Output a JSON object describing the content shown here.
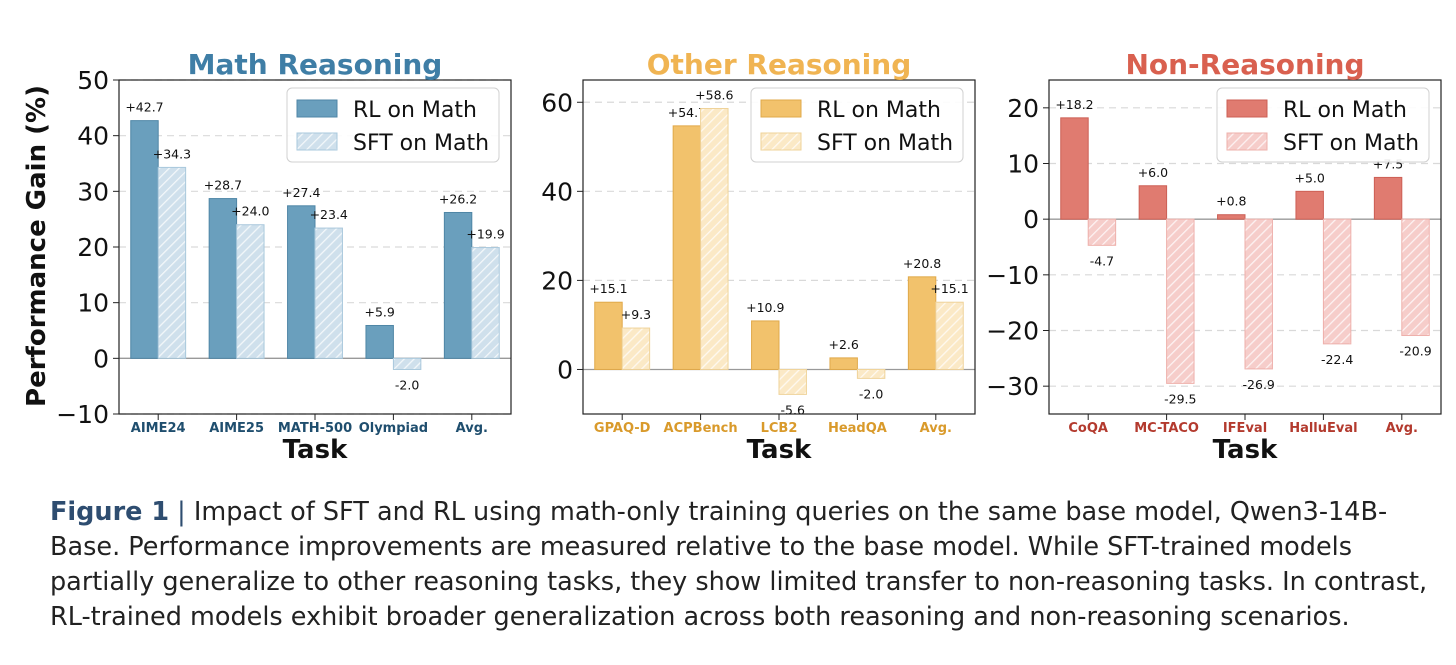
{
  "legend": {
    "rl": "RL on Math",
    "sft": "SFT on Math"
  },
  "ylabel": "Performance Gain (%)",
  "chart_data": [
    {
      "type": "bar",
      "title": "Math Reasoning",
      "xlabel": "Task",
      "ylabel": "Performance Gain (%)",
      "categories": [
        "AIME24",
        "AIME25",
        "MATH-500",
        "Olympiad",
        "Avg."
      ],
      "series": [
        {
          "name": "RL on Math",
          "values": [
            42.7,
            28.7,
            27.4,
            5.9,
            26.2
          ],
          "labels": [
            "+42.7",
            "+28.7",
            "+27.4",
            "+5.9",
            "+26.2"
          ]
        },
        {
          "name": "SFT on Math",
          "values": [
            34.3,
            24.0,
            23.4,
            -2.0,
            19.9
          ],
          "labels": [
            "+34.3",
            "+24.0",
            "+23.4",
            "-2.0",
            "+19.9"
          ]
        }
      ],
      "ylim": [
        -10,
        50
      ],
      "yticks": [
        -10,
        0,
        10,
        20,
        30,
        40,
        50
      ],
      "ytick_labels": [
        "−10",
        "0",
        "10",
        "20",
        "30",
        "40",
        "50"
      ],
      "grid": true,
      "legend_position": "top-right",
      "colors": {
        "title": "#3f7ea6",
        "tick": "#1f4e6e",
        "rl": "#6a9fbd",
        "rl_edge": "#4f86a6",
        "sft": "#cfe0ec",
        "sft_edge": "#a9c8dc"
      }
    },
    {
      "type": "bar",
      "title": "Other Reasoning",
      "xlabel": "Task",
      "categories": [
        "GPAQ-D",
        "ACPBench",
        "LCB2",
        "HeadQA",
        "Avg."
      ],
      "series": [
        {
          "name": "RL on Math",
          "values": [
            15.1,
            54.7,
            10.9,
            2.6,
            20.8
          ],
          "labels": [
            "+15.1",
            "+54.7",
            "+10.9",
            "+2.6",
            "+20.8"
          ]
        },
        {
          "name": "SFT on Math",
          "values": [
            9.3,
            58.6,
            -5.6,
            -2.0,
            15.1
          ],
          "labels": [
            "+9.3",
            "+58.6",
            "-5.6",
            "-2.0",
            "+15.1"
          ]
        }
      ],
      "ylim": [
        -10,
        65
      ],
      "yticks": [
        0,
        20,
        40,
        60
      ],
      "ytick_labels": [
        "0",
        "20",
        "40",
        "60"
      ],
      "grid": true,
      "legend_position": "top-right",
      "colors": {
        "title": "#f0b452",
        "tick": "#d99a2b",
        "rl": "#f2c26c",
        "rl_edge": "#e0a94a",
        "sft": "#fbe9c6",
        "sft_edge": "#efd39a"
      }
    },
    {
      "type": "bar",
      "title": "Non-Reasoning",
      "xlabel": "Task",
      "categories": [
        "CoQA",
        "MC-TACO",
        "IFEval",
        "HalluEval",
        "Avg."
      ],
      "series": [
        {
          "name": "RL on Math",
          "values": [
            18.2,
            6.0,
            0.8,
            5.0,
            7.5
          ],
          "labels": [
            "+18.2",
            "+6.0",
            "+0.8",
            "+5.0",
            "+7.5"
          ]
        },
        {
          "name": "SFT on Math",
          "values": [
            -4.7,
            -29.5,
            -26.9,
            -22.4,
            -20.9
          ],
          "labels": [
            "-4.7",
            "-29.5",
            "-26.9",
            "-22.4",
            "-20.9"
          ]
        }
      ],
      "ylim": [
        -35,
        25
      ],
      "yticks": [
        -30,
        -20,
        -10,
        0,
        10,
        20
      ],
      "ytick_labels": [
        "−30",
        "−20",
        "−10",
        "0",
        "10",
        "20"
      ],
      "grid": true,
      "legend_position": "top-right",
      "colors": {
        "title": "#d9604f",
        "tick": "#b33a2e",
        "rl": "#e07b70",
        "rl_edge": "#cc5f55",
        "sft": "#f6cdca",
        "sft_edge": "#eeb0ab"
      }
    }
  ],
  "caption": {
    "label": "Figure 1",
    "separator": "|",
    "text": "Impact of SFT and RL using math-only training queries on the same base model, Qwen3-14B-Base. Performance improvements are measured relative to the base model. While SFT-trained models partially generalize to other reasoning tasks, they show limited transfer to non-reasoning tasks. In contrast, RL-trained models exhibit broader generalization across both reasoning and non-reasoning scenarios."
  }
}
